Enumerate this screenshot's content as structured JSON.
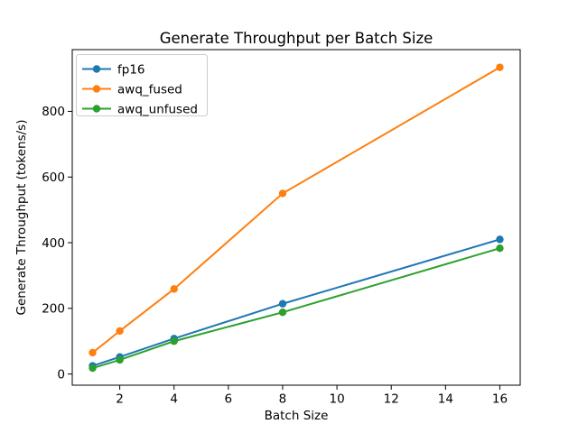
{
  "window": {
    "background": "#ffffff"
  },
  "chart_data": {
    "type": "line",
    "title": "Generate Throughput per Batch Size",
    "xlabel": "Batch Size",
    "ylabel": "Generate Throughput (tokens/s)",
    "x": [
      1,
      2,
      4,
      8,
      16
    ],
    "series": [
      {
        "name": "fp16",
        "color": "#1f77b4",
        "values": [
          25,
          52,
          108,
          214,
          410
        ]
      },
      {
        "name": "awq_fused",
        "color": "#ff7f0e",
        "values": [
          65,
          131,
          259,
          550,
          934
        ]
      },
      {
        "name": "awq_unfused",
        "color": "#2ca02c",
        "values": [
          18,
          43,
          100,
          188,
          383
        ]
      }
    ],
    "xticks": [
      2,
      4,
      6,
      8,
      10,
      12,
      14,
      16
    ],
    "yticks": [
      0,
      200,
      400,
      600,
      800
    ],
    "xlim": [
      0.25,
      16.75
    ],
    "ylim": [
      -34,
      988
    ],
    "grid": false,
    "marker": "o",
    "legend_position": "upper left",
    "axis_color": "#000000",
    "text_color": "#000000",
    "legend_border_color": "#cccccc"
  }
}
